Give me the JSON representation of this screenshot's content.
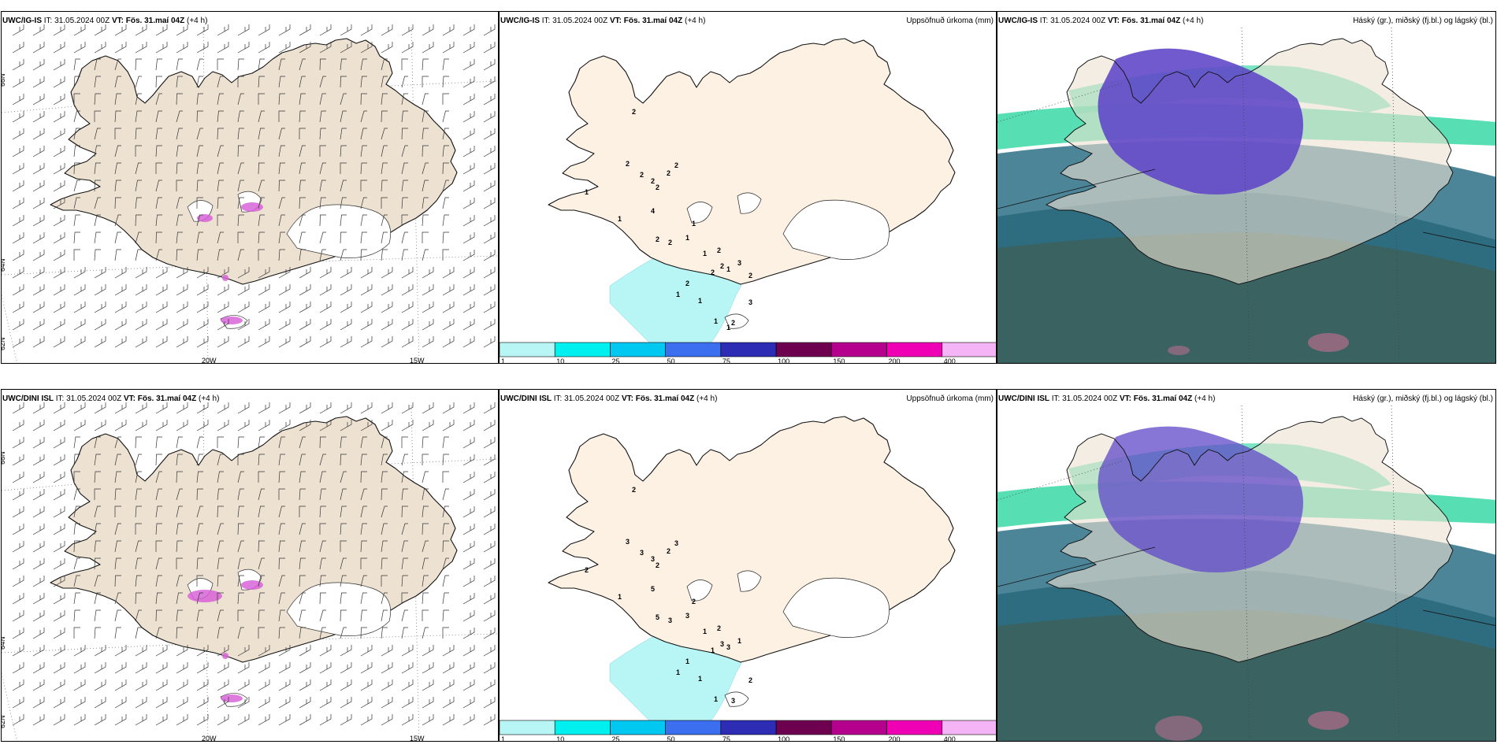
{
  "rows": [
    {
      "model": "UWC/IG-IS",
      "it_label": "IT: 31.05.2024 00Z",
      "vt_label": "VT: Fös. 31.maí 04Z",
      "lead": "(+4 h)"
    },
    {
      "model": "UWC/DINI ISL",
      "it_label": "IT: 31.05.2024 00Z",
      "vt_label": "VT: Fös. 31.maí 04Z",
      "lead": "(+4 h)"
    }
  ],
  "precip_title": "Uppsöfnuð úrkoma (mm)",
  "cloud_title": "Háský (gr.), miðský (fj.bl.) og lágský (bl.)",
  "lat_labels": [
    "66N",
    "64N",
    "62N"
  ],
  "lon_labels": [
    "20W",
    "15W"
  ],
  "colorbar": {
    "ticks": [
      "1",
      "10",
      "25",
      "50",
      "75",
      "100",
      "150",
      "200",
      "400"
    ],
    "colors": [
      "#b8f5f5",
      "#00f0f0",
      "#00c8f0",
      "#3c6ef0",
      "#2c2cb4",
      "#6e0050",
      "#b4008c",
      "#f000b4",
      "#f5b4f5"
    ]
  },
  "precip_numbers": {
    "top": [
      "2",
      "2",
      "2",
      "2",
      "2",
      "2",
      "2",
      "1",
      "1",
      "4",
      "2",
      "2",
      "1",
      "1",
      "1",
      "2",
      "2",
      "2",
      "1",
      "3",
      "2",
      "1",
      "1",
      "1",
      "2",
      "3",
      "2",
      "1"
    ],
    "bottom": [
      "2",
      "3",
      "3",
      "3",
      "2",
      "2",
      "3",
      "2",
      "1",
      "5",
      "5",
      "3",
      "3",
      "2",
      "1",
      "2",
      "3",
      "1",
      "3",
      "1",
      "1",
      "1",
      "1",
      "1",
      "3",
      "2"
    ]
  },
  "colors": {
    "land": "#ede2d2",
    "land_precip": "#fdf1e4",
    "coast": "#000000",
    "precip_light": "#b8f5f5",
    "cloud_dark": "#2f5a58",
    "cloud_mid": "#2d6e86",
    "cloud_green": "#1fd49a",
    "cloud_purple": "#6048c8"
  }
}
